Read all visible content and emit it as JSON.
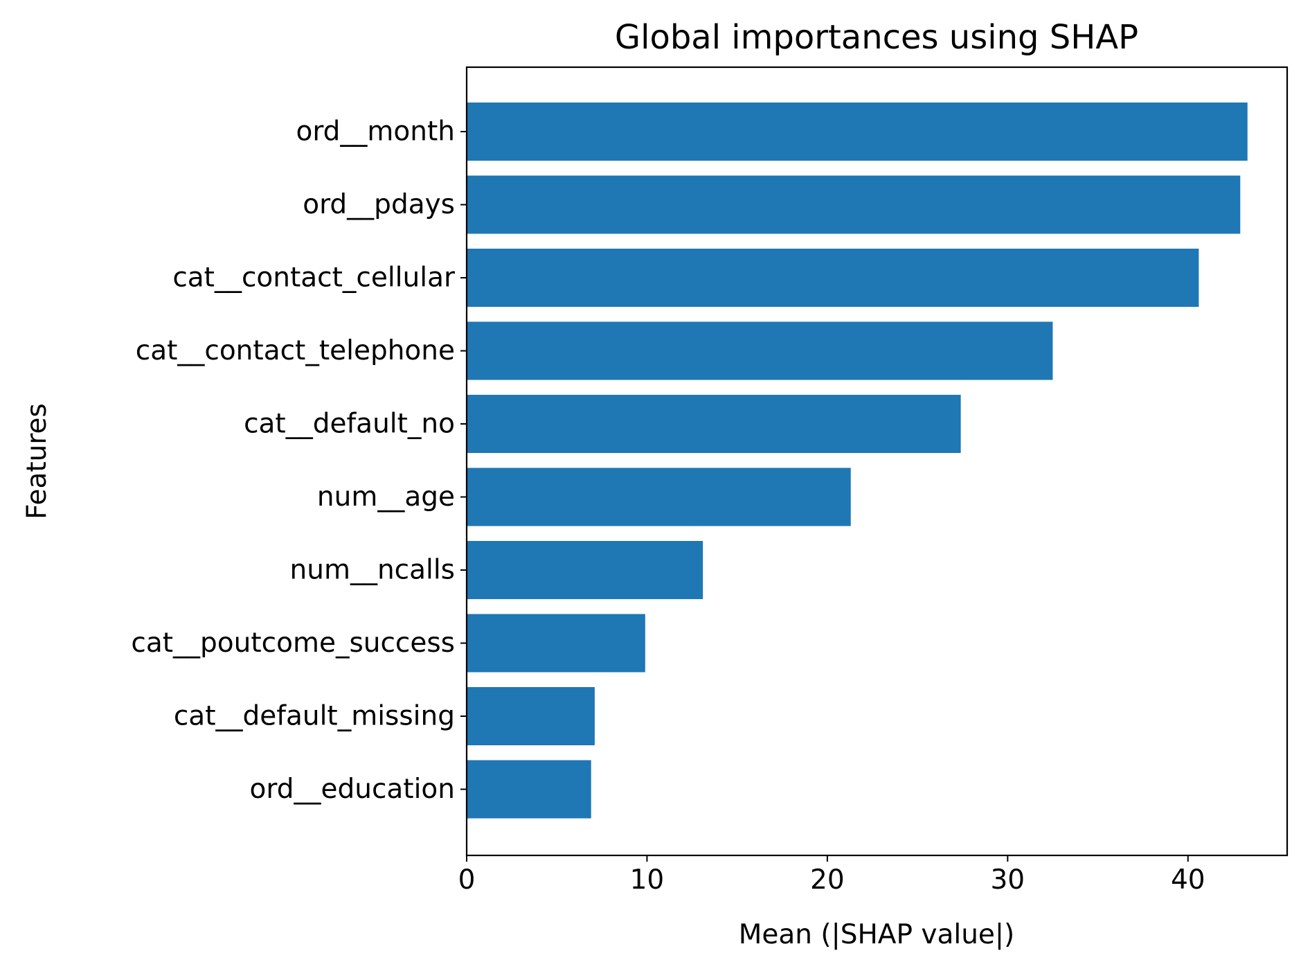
{
  "chart_data": {
    "type": "bar",
    "orientation": "horizontal",
    "title": "Global importances using SHAP",
    "xlabel": "Mean (|SHAP value|)",
    "ylabel": "Features",
    "categories": [
      "ord__month",
      "ord__pdays",
      "cat__contact_cellular",
      "cat__contact_telephone",
      "cat__default_no",
      "num__age",
      "num__ncalls",
      "cat__poutcome_success",
      "cat__default_missing",
      "ord__education"
    ],
    "values": [
      43.3,
      42.9,
      40.6,
      32.5,
      27.4,
      21.3,
      13.1,
      9.9,
      7.1,
      6.9
    ],
    "xlim": [
      0,
      45.5
    ],
    "xticks": [
      0,
      10,
      20,
      30,
      40
    ],
    "grid": false,
    "bar_color": "#1f77b4"
  }
}
